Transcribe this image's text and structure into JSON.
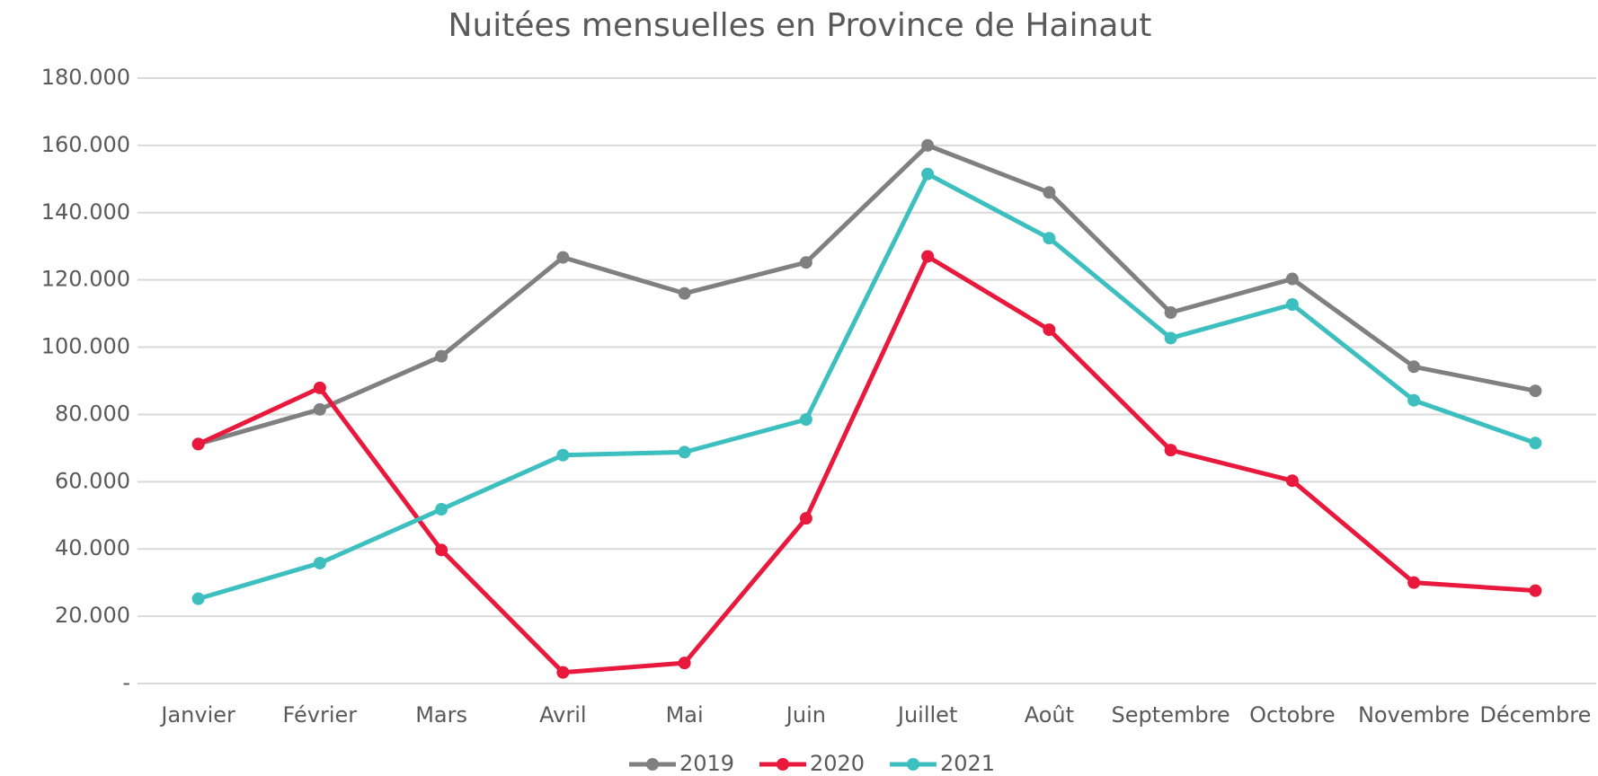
{
  "chart_data": {
    "type": "line",
    "title": "Nuitées mensuelles en Province de Hainaut",
    "categories": [
      "Janvier",
      "Février",
      "Mars",
      "Avril",
      "Mai",
      "Juin",
      "Juillet",
      "Août",
      "Septembre",
      "Octobre",
      "Novembre",
      "Décembre"
    ],
    "series": [
      {
        "name": "2019",
        "color": "#808080",
        "values": [
          71200,
          81500,
          97300,
          126700,
          116000,
          125200,
          160000,
          146000,
          110300,
          120300,
          94200,
          87000
        ]
      },
      {
        "name": "2020",
        "color": "#e8193c",
        "values": [
          71200,
          87900,
          39700,
          3300,
          6100,
          49100,
          127000,
          105200,
          69400,
          60300,
          30000,
          27600
        ]
      },
      {
        "name": "2021",
        "color": "#3dbfbf",
        "values": [
          25200,
          35800,
          51800,
          67900,
          68800,
          78500,
          151500,
          132400,
          102700,
          112700,
          84200,
          71500
        ]
      }
    ],
    "ylim": [
      0,
      180000
    ],
    "yticks": [
      {
        "value": 0,
        "label": "-"
      },
      {
        "value": 20000,
        "label": "20.000"
      },
      {
        "value": 40000,
        "label": "40.000"
      },
      {
        "value": 60000,
        "label": "60.000"
      },
      {
        "value": 80000,
        "label": "80.000"
      },
      {
        "value": 100000,
        "label": "100.000"
      },
      {
        "value": 120000,
        "label": "120.000"
      },
      {
        "value": 140000,
        "label": "140.000"
      },
      {
        "value": 160000,
        "label": "160.000"
      },
      {
        "value": 180000,
        "label": "180.000"
      }
    ],
    "grid": true,
    "legend": "bottom"
  }
}
